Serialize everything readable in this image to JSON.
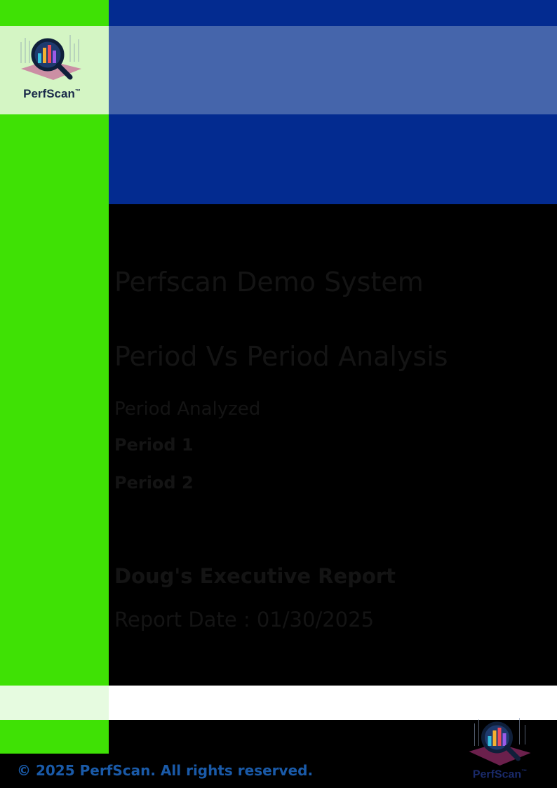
{
  "logo": {
    "wordmark": "PerfScan",
    "trademark": "™",
    "icon": "magnifier-chart-icon"
  },
  "cover": {
    "system_name": "Perfscan Demo System",
    "analysis_type": "Period Vs Period Analysis",
    "period_heading": "Period Analyzed",
    "period_1_label": "Period 1",
    "period_2_label": "Period 2",
    "report_title": "Doug's Executive Report",
    "report_date": "Report Date : 01/30/2025"
  },
  "footer": {
    "copyright": "© 2025 PerfScan. All rights reserved."
  },
  "colors": {
    "sidebar_green": "#3fe105",
    "header_navy": "#032b90",
    "header_band": "#4565ab",
    "logo_panel": "#d4f5c4",
    "footer_text": "#1a5aa8"
  }
}
